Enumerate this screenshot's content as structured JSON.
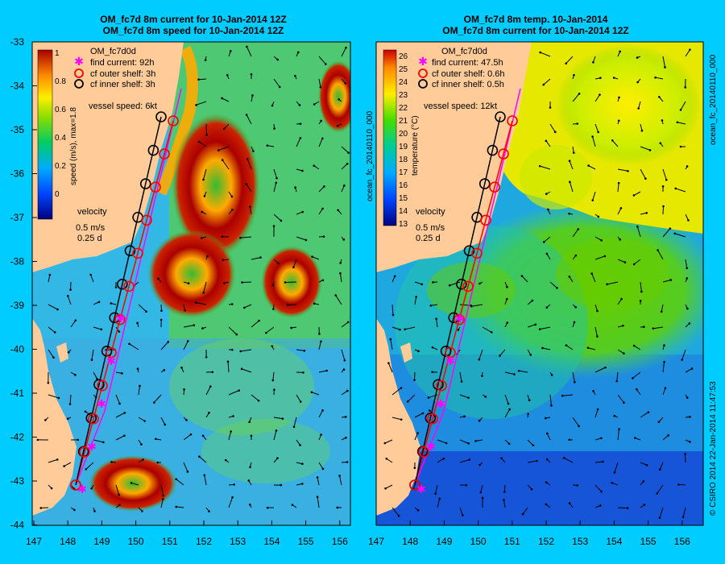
{
  "left_panel": {
    "title_line1": "OM_fc7d 8m current for 10-Jan-2014 12Z",
    "title_line2": "OM_fc7d 8m speed for 10-Jan-2014 12Z",
    "model_label": "OM_fc7d0d",
    "legend": [
      {
        "label": "find current: 92h",
        "marker": "asterisk",
        "color": "#FF00FF"
      },
      {
        "label": "cf outer shelf: 3h",
        "marker": "circle",
        "color": "#FF0000"
      },
      {
        "label": "cf inner shelf: 3h",
        "marker": "circle",
        "color": "#000000"
      }
    ],
    "vessel_speed": "vessel speed: 6kt",
    "colorbar_label": "speed (m/s), max=1.8",
    "colorbar_ticks": [
      "1",
      "0.8",
      "0.6",
      "0.4",
      "0.2",
      "0"
    ],
    "velocity_label": "velocity",
    "velocity_scale": "0.5 m/s",
    "velocity_time": "0.25 d"
  },
  "right_panel": {
    "title_line1": "OM_fc7d 8m temp. 10-Jan-2014",
    "title_line2": "OM_fc7d 8m current for 10-Jan-2014 12Z",
    "model_label": "OM_fc7d0d",
    "legend": [
      {
        "label": "find current: 47.5h",
        "marker": "asterisk",
        "color": "#FF00FF"
      },
      {
        "label": "cf outer shelf: 0.6h",
        "marker": "circle",
        "color": "#FF0000"
      },
      {
        "label": "cf inner shelf: 0.5h",
        "marker": "circle",
        "color": "#000000"
      }
    ],
    "vessel_speed": "vessel speed: 12kt",
    "colorbar_label": "temperature (°C)",
    "colorbar_ticks": [
      "26",
      "25",
      "24",
      "23",
      "22",
      "21",
      "20",
      "19",
      "18",
      "17",
      "16",
      "15",
      "14",
      "13"
    ],
    "velocity_label": "velocity",
    "velocity_scale": "0.5 m/s",
    "velocity_time": "0.25 d"
  },
  "axes": {
    "lat_ticks": [
      "-33",
      "-34",
      "-35",
      "-36",
      "-37",
      "-38",
      "-39",
      "-40",
      "-41",
      "-42",
      "-43",
      "-44"
    ],
    "lon_ticks": [
      "147",
      "148",
      "149",
      "150",
      "151",
      "152",
      "153",
      "154",
      "155",
      "156"
    ]
  },
  "side_labels": {
    "middle": "ocean_fc_20140110_000",
    "right_top": "ocean_fc_20140110_000",
    "right_bottom": "© CSIRO 2014   22-Jan-2014 11:47:53"
  },
  "colors": {
    "background": "#00CCFF",
    "land": "#FFCC99",
    "find_current": "#FF00FF",
    "outer_shelf": "#FF0000",
    "inner_shelf": "#000000"
  }
}
